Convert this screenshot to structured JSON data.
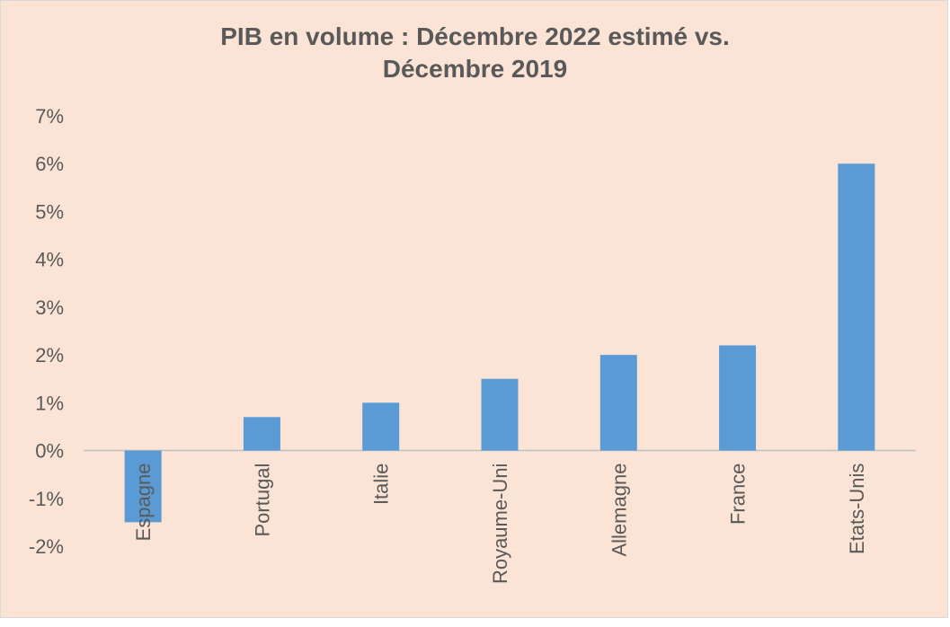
{
  "chart_data": {
    "type": "bar",
    "title_lines": [
      "PIB en volume : Décembre 2022 estimé vs.",
      "Décembre 2019"
    ],
    "categories": [
      "Espagne",
      "Portugal",
      "Italie",
      "Royaume-Uni",
      "Allemagne",
      "France",
      "Etats-Unis"
    ],
    "values": [
      -1.5,
      0.7,
      1.0,
      1.5,
      2.0,
      2.2,
      6.0
    ],
    "ylim": [
      -2,
      7
    ],
    "yticks": [
      7,
      6,
      5,
      4,
      3,
      2,
      1,
      0,
      -1,
      -2
    ],
    "ytick_labels": [
      "7%",
      "6%",
      "5%",
      "4%",
      "3%",
      "2%",
      "1%",
      "0%",
      "-1%",
      "-2%"
    ],
    "xlabel": "",
    "ylabel": "",
    "grid": false,
    "legend": "none",
    "colors": {
      "bar": "#5b9bd5",
      "background": "#fbe4d5",
      "axis": "#bfbfbf",
      "text": "#595959"
    }
  }
}
